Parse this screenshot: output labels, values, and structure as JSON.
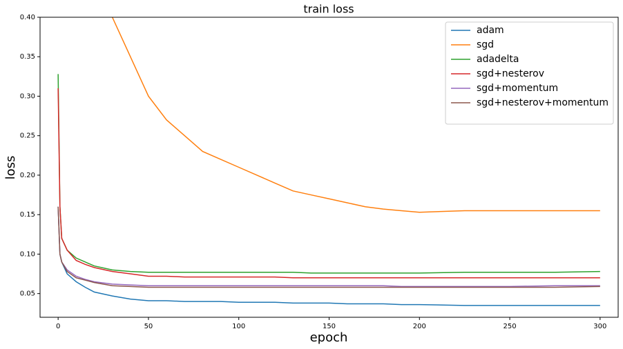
{
  "chart_data": {
    "type": "line",
    "title": "train loss",
    "x_label": "epoch",
    "y_label": "loss",
    "x": [
      0,
      1,
      2,
      5,
      10,
      15,
      20,
      30,
      40,
      50,
      60,
      70,
      80,
      90,
      100,
      110,
      120,
      130,
      140,
      150,
      160,
      170,
      180,
      190,
      200,
      225,
      250,
      275,
      300
    ],
    "series": [
      {
        "name": "adam",
        "color": "#1f77b4",
        "values": [
          0.16,
          0.1,
          0.09,
          0.075,
          0.065,
          0.058,
          0.052,
          0.047,
          0.043,
          0.041,
          0.041,
          0.04,
          0.04,
          0.04,
          0.039,
          0.039,
          0.039,
          0.038,
          0.038,
          0.038,
          0.037,
          0.037,
          0.037,
          0.036,
          0.036,
          0.035,
          0.035,
          0.035,
          0.035
        ]
      },
      {
        "name": "sgd",
        "color": "#ff7f0e",
        "values": [
          null,
          null,
          null,
          null,
          null,
          null,
          null,
          0.4,
          0.35,
          0.3,
          0.27,
          0.25,
          0.23,
          0.22,
          0.21,
          0.2,
          0.19,
          0.18,
          0.175,
          0.17,
          0.165,
          0.16,
          0.157,
          0.155,
          0.153,
          0.155,
          0.155,
          0.155,
          0.155
        ]
      },
      {
        "name": "adadelta",
        "color": "#2ca02c",
        "values": [
          0.328,
          0.16,
          0.12,
          0.105,
          0.095,
          0.09,
          0.085,
          0.08,
          0.078,
          0.077,
          0.077,
          0.077,
          0.077,
          0.077,
          0.077,
          0.077,
          0.077,
          0.077,
          0.076,
          0.076,
          0.076,
          0.076,
          0.076,
          0.076,
          0.076,
          0.077,
          0.077,
          0.077,
          0.078
        ]
      },
      {
        "name": "sgd+nesterov",
        "color": "#d62728",
        "values": [
          0.31,
          0.16,
          0.12,
          0.105,
          0.092,
          0.087,
          0.083,
          0.078,
          0.075,
          0.072,
          0.072,
          0.071,
          0.071,
          0.071,
          0.071,
          0.071,
          0.071,
          0.07,
          0.07,
          0.07,
          0.07,
          0.07,
          0.07,
          0.07,
          0.07,
          0.07,
          0.07,
          0.07,
          0.07
        ]
      },
      {
        "name": "sgd+momentum",
        "color": "#9467bd",
        "values": [
          0.16,
          0.1,
          0.09,
          0.08,
          0.072,
          0.068,
          0.065,
          0.062,
          0.061,
          0.06,
          0.06,
          0.06,
          0.06,
          0.06,
          0.06,
          0.06,
          0.06,
          0.06,
          0.06,
          0.06,
          0.06,
          0.06,
          0.06,
          0.059,
          0.059,
          0.059,
          0.059,
          0.06,
          0.06
        ]
      },
      {
        "name": "sgd+nesterov+momentum",
        "color": "#8c564b",
        "values": [
          0.16,
          0.1,
          0.09,
          0.078,
          0.07,
          0.067,
          0.064,
          0.06,
          0.059,
          0.058,
          0.058,
          0.058,
          0.058,
          0.058,
          0.058,
          0.058,
          0.058,
          0.058,
          0.058,
          0.058,
          0.058,
          0.058,
          0.058,
          0.058,
          0.058,
          0.058,
          0.058,
          0.058,
          0.059
        ]
      }
    ],
    "xlim": [
      -10,
      310
    ],
    "ylim": [
      0.02,
      0.4
    ],
    "xticks": [
      0,
      50,
      100,
      150,
      200,
      250,
      300
    ],
    "yticks": [
      0.05,
      {
        "value": 0.1,
        "label": "0.10"
      },
      0.15,
      {
        "value": 0.2,
        "label": "0.20"
      },
      0.25,
      {
        "value": 0.3,
        "label": "0.30"
      },
      0.35,
      {
        "value": 0.4,
        "label": "0.40"
      }
    ],
    "legend": "upper right"
  }
}
